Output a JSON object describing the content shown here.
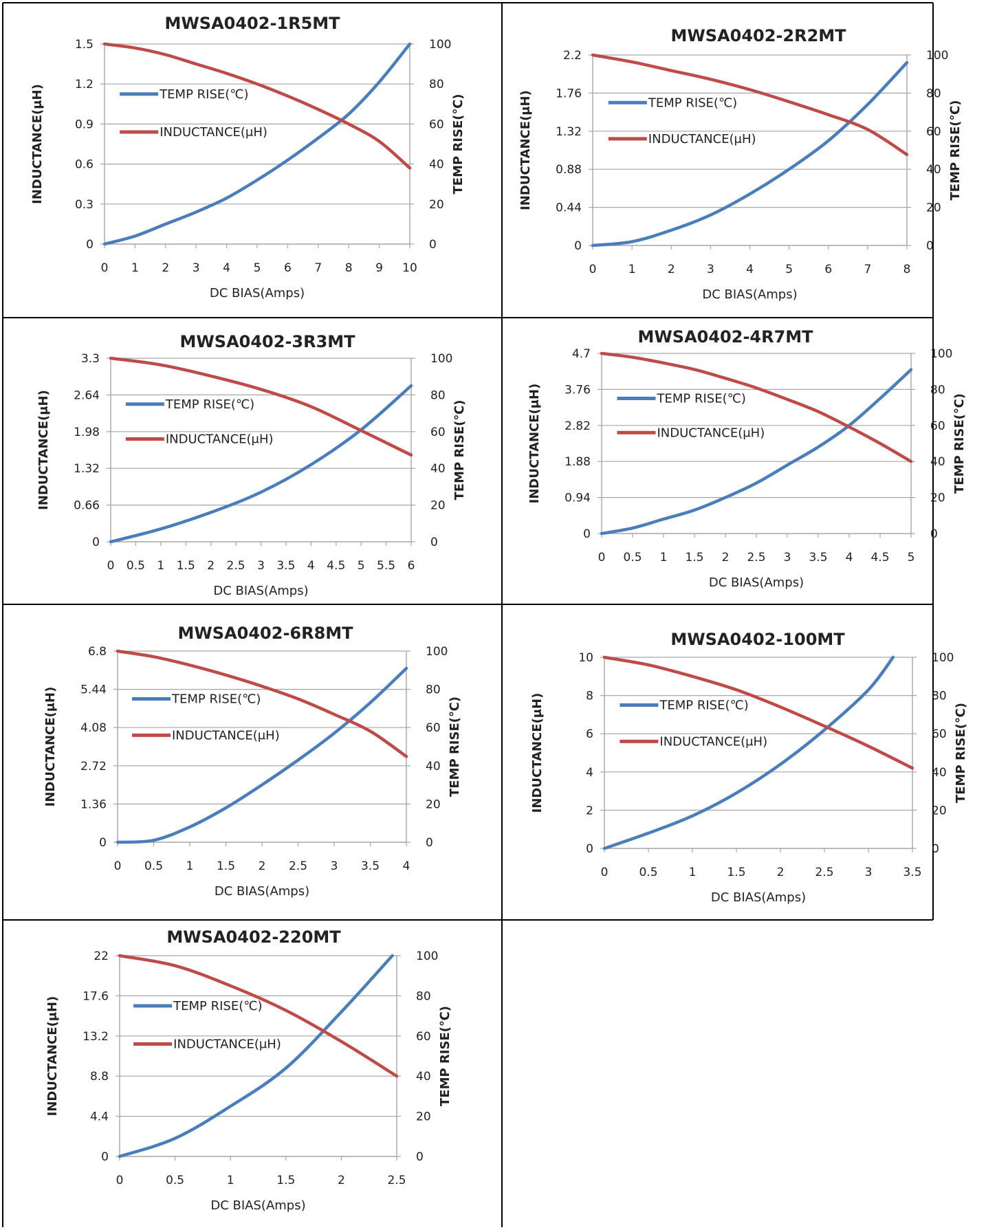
{
  "colors": {
    "temp": "#4a7ebb",
    "inductance": "#be4b48",
    "grid": "#a6a6a6",
    "border": "#000000"
  },
  "chart_data": [
    {
      "type": "line",
      "title": "MWSA0402-1R5MT",
      "xlabel": "DC  BIAS(Amps)",
      "ylabel_left": "INDUCTANCE(μH)",
      "ylabel_right": "TEMP RISE(℃)",
      "x_ticks": [
        "0",
        "1",
        "2",
        "3",
        "4",
        "5",
        "6",
        "7",
        "8",
        "9",
        "10"
      ],
      "y_left_ticks": [
        "0",
        "0.3",
        "0.6",
        "0.9",
        "1.2",
        "1.5"
      ],
      "y_right_ticks": [
        "0",
        "20",
        "40",
        "60",
        "80",
        "100"
      ],
      "xlim": [
        0,
        10
      ],
      "ylim_left": [
        0,
        1.5
      ],
      "ylim_right": [
        0,
        100
      ],
      "grid": true,
      "legend_position": "upper-left",
      "series": [
        {
          "name": "TEMP RISE(℃)",
          "axis": "right",
          "color": "#4a7ebb",
          "x": [
            0,
            1,
            2,
            3,
            4,
            5,
            6,
            7,
            8,
            9,
            10
          ],
          "y": [
            0,
            4,
            10,
            16,
            23,
            32,
            42,
            53,
            65,
            81,
            100
          ]
        },
        {
          "name": "INDUCTANCE(μH)",
          "axis": "left",
          "color": "#be4b48",
          "x": [
            0,
            1,
            2,
            3,
            4,
            5,
            6,
            7,
            8,
            9,
            10
          ],
          "y": [
            1.5,
            1.47,
            1.42,
            1.35,
            1.28,
            1.2,
            1.11,
            1.01,
            0.9,
            0.77,
            0.57
          ]
        }
      ]
    },
    {
      "type": "line",
      "title": "MWSA0402-2R2MT",
      "xlabel": "DC  BIAS(Amps)",
      "ylabel_left": "INDUCTANCE(μH)",
      "ylabel_right": "TEMP RISE(℃)",
      "x_ticks": [
        "0",
        "1",
        "2",
        "3",
        "4",
        "5",
        "6",
        "7",
        "8"
      ],
      "y_left_ticks": [
        "0",
        "0.44",
        "0.88",
        "1.32",
        "1.76",
        "2.2"
      ],
      "y_right_ticks": [
        "0",
        "20",
        "40",
        "60",
        "80",
        "100"
      ],
      "xlim": [
        0,
        8
      ],
      "ylim_left": [
        0,
        2.2
      ],
      "ylim_right": [
        0,
        100
      ],
      "grid": true,
      "legend_position": "upper-left",
      "series": [
        {
          "name": "TEMP RISE(℃)",
          "axis": "right",
          "color": "#4a7ebb",
          "x": [
            0,
            1,
            2,
            3,
            4,
            5,
            6,
            7,
            8
          ],
          "y": [
            0,
            2,
            8,
            16,
            27,
            40,
            55,
            74,
            96
          ]
        },
        {
          "name": "INDUCTANCE(μH)",
          "axis": "left",
          "color": "#be4b48",
          "x": [
            0,
            1,
            2,
            3,
            4,
            5,
            6,
            7,
            8
          ],
          "y": [
            2.2,
            2.12,
            2.02,
            1.92,
            1.8,
            1.66,
            1.51,
            1.34,
            1.05
          ]
        }
      ]
    },
    {
      "type": "line",
      "title": "MWSA0402-3R3MT",
      "xlabel": "DC  BIAS(Amps)",
      "ylabel_left": "INDUCTANCE(μH)",
      "ylabel_right": "TEMP RISE(℃)",
      "x_ticks": [
        "0",
        "0.5",
        "1",
        "1.5",
        "2",
        "2.5",
        "3",
        "3.5",
        "4",
        "4.5",
        "5",
        "5.5",
        "6"
      ],
      "y_left_ticks": [
        "0",
        "0.66",
        "1.32",
        "1.98",
        "2.64",
        "3.3"
      ],
      "y_right_ticks": [
        "0",
        "20",
        "40",
        "60",
        "80",
        "100"
      ],
      "xlim": [
        0,
        6
      ],
      "ylim_left": [
        0,
        3.3
      ],
      "ylim_right": [
        0,
        100
      ],
      "grid": true,
      "legend_position": "upper-left",
      "series": [
        {
          "name": "TEMP RISE(℃)",
          "axis": "right",
          "color": "#4a7ebb",
          "x": [
            0,
            1,
            2,
            3,
            4,
            5,
            6
          ],
          "y": [
            0,
            7,
            16,
            27,
            42,
            61,
            85
          ]
        },
        {
          "name": "INDUCTANCE(μH)",
          "axis": "left",
          "color": "#be4b48",
          "x": [
            0,
            1,
            2,
            3,
            4,
            5,
            6
          ],
          "y": [
            3.3,
            3.18,
            2.98,
            2.74,
            2.43,
            2.0,
            1.56
          ]
        }
      ]
    },
    {
      "type": "line",
      "title": "MWSA0402-4R7MT",
      "xlabel": "DC  BIAS(Amps)",
      "ylabel_left": "INDUCTANCE(μH)",
      "ylabel_right": "TEMP RISE(℃)",
      "x_ticks": [
        "0",
        "0.5",
        "1",
        "1.5",
        "2",
        "2.5",
        "3",
        "3.5",
        "4",
        "4.5",
        "5"
      ],
      "y_left_ticks": [
        "0",
        "0.94",
        "1.88",
        "2.82",
        "3.76",
        "4.7"
      ],
      "y_right_ticks": [
        "0",
        "20",
        "40",
        "60",
        "80",
        "100"
      ],
      "xlim": [
        0,
        5
      ],
      "ylim_left": [
        0,
        4.7
      ],
      "ylim_right": [
        0,
        100
      ],
      "grid": true,
      "legend_position": "upper-left",
      "series": [
        {
          "name": "TEMP RISE(℃)",
          "axis": "right",
          "color": "#4a7ebb",
          "x": [
            0,
            0.5,
            1,
            1.5,
            2,
            2.5,
            3,
            3.5,
            4,
            4.5,
            5
          ],
          "y": [
            0,
            3,
            8,
            13,
            20,
            28,
            38,
            48,
            60,
            75,
            91
          ]
        },
        {
          "name": "INDUCTANCE(μH)",
          "axis": "left",
          "color": "#be4b48",
          "x": [
            0,
            0.5,
            1,
            1.5,
            2,
            2.5,
            3,
            3.5,
            4,
            4.5,
            5
          ],
          "y": [
            4.7,
            4.6,
            4.45,
            4.28,
            4.05,
            3.8,
            3.5,
            3.18,
            2.78,
            2.35,
            1.88
          ]
        }
      ]
    },
    {
      "type": "line",
      "title": "MWSA0402-6R8MT",
      "xlabel": "DC  BIAS(Amps)",
      "ylabel_left": "INDUCTANCE(μH)",
      "ylabel_right": "TEMP RISE(℃)",
      "x_ticks": [
        "0",
        "0.5",
        "1",
        "1.5",
        "2",
        "2.5",
        "3",
        "3.5",
        "4"
      ],
      "y_left_ticks": [
        "0",
        "1.36",
        "2.72",
        "4.08",
        "5.44",
        "6.8"
      ],
      "y_right_ticks": [
        "0",
        "20",
        "40",
        "60",
        "80",
        "100"
      ],
      "xlim": [
        0,
        4
      ],
      "ylim_left": [
        0,
        6.8
      ],
      "ylim_right": [
        0,
        100
      ],
      "grid": true,
      "legend_position": "upper-left",
      "series": [
        {
          "name": "TEMP RISE(℃)",
          "axis": "right",
          "color": "#4a7ebb",
          "x": [
            0,
            0.5,
            1,
            1.5,
            2,
            2.5,
            3,
            3.5,
            4
          ],
          "y": [
            0,
            1,
            8,
            18,
            30,
            43,
            57,
            73,
            91
          ]
        },
        {
          "name": "INDUCTANCE(μH)",
          "axis": "left",
          "color": "#be4b48",
          "x": [
            0,
            0.5,
            1,
            1.5,
            2,
            2.5,
            3,
            3.5,
            4
          ],
          "y": [
            6.8,
            6.6,
            6.3,
            5.95,
            5.55,
            5.1,
            4.55,
            3.95,
            3.05
          ]
        }
      ]
    },
    {
      "type": "line",
      "title": "MWSA0402-100MT",
      "xlabel": "DC  BIAS(Amps)",
      "ylabel_left": "INDUCTANCE(μH)",
      "ylabel_right": "TEMP RISE(℃)",
      "x_ticks": [
        "0",
        "0.5",
        "1",
        "1.5",
        "2",
        "2.5",
        "3",
        "3.5"
      ],
      "y_left_ticks": [
        "0",
        "2",
        "4",
        "6",
        "8",
        "10"
      ],
      "y_right_ticks": [
        "0",
        "20",
        "40",
        "60",
        "80",
        "100"
      ],
      "xlim": [
        0,
        3.5
      ],
      "ylim_left": [
        0,
        10
      ],
      "ylim_right": [
        0,
        100
      ],
      "grid": true,
      "legend_position": "upper-left",
      "series": [
        {
          "name": "TEMP RISE(℃)",
          "axis": "right",
          "color": "#4a7ebb",
          "x": [
            0,
            0.5,
            1,
            1.5,
            2,
            2.5,
            3,
            3.28
          ],
          "y": [
            0,
            8,
            17,
            29,
            44,
            62,
            83,
            100
          ]
        },
        {
          "name": "INDUCTANCE(μH)",
          "axis": "left",
          "color": "#be4b48",
          "x": [
            0,
            0.5,
            1,
            1.5,
            2,
            2.5,
            3,
            3.5
          ],
          "y": [
            10,
            9.6,
            9.0,
            8.3,
            7.4,
            6.4,
            5.35,
            4.2
          ]
        }
      ]
    },
    {
      "type": "line",
      "title": "MWSA0402-220MT",
      "xlabel": "DC  BIAS(Amps)",
      "ylabel_left": "INDUCTANCE(μH)",
      "ylabel_right": "TEMP RISE(℃)",
      "x_ticks": [
        "0",
        "0.5",
        "1",
        "1.5",
        "2",
        "2.5"
      ],
      "y_left_ticks": [
        "0",
        "4.4",
        "8.8",
        "13.2",
        "17.6",
        "22"
      ],
      "y_right_ticks": [
        "0",
        "20",
        "40",
        "60",
        "80",
        "100"
      ],
      "xlim": [
        0,
        2.5
      ],
      "ylim_left": [
        0,
        22
      ],
      "ylim_right": [
        0,
        100
      ],
      "grid": true,
      "legend_position": "upper-left",
      "series": [
        {
          "name": "TEMP RISE(℃)",
          "axis": "right",
          "color": "#4a7ebb",
          "x": [
            0,
            0.5,
            1,
            1.5,
            2,
            2.46
          ],
          "y": [
            0,
            9,
            25,
            44,
            72,
            100
          ]
        },
        {
          "name": "INDUCTANCE(μH)",
          "axis": "left",
          "color": "#be4b48",
          "x": [
            0,
            0.5,
            1,
            1.5,
            2,
            2.5
          ],
          "y": [
            22,
            20.9,
            18.7,
            16.0,
            12.6,
            8.8
          ]
        }
      ]
    }
  ]
}
